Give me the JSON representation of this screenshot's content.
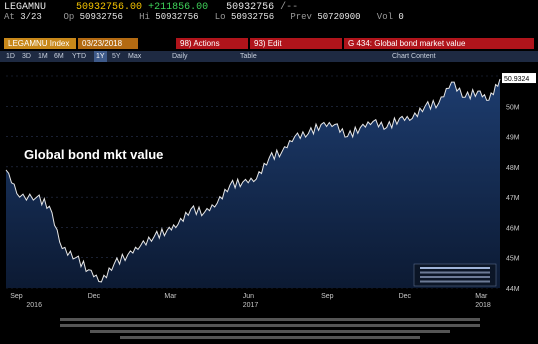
{
  "header": {
    "ticker": "LEGAMNU",
    "last": "50932756.00",
    "change": "+211856.00",
    "last2": "50932756",
    "suffix": "/--",
    "at_label": "At",
    "at_time": "3/23",
    "op_label": "Op",
    "op": "50932756",
    "hi_label": "Hi",
    "hi": "50932756",
    "lo_label": "Lo",
    "lo": "50932756",
    "prev_label": "Prev",
    "prev": "50720900",
    "vol_label": "Vol",
    "vol": "0"
  },
  "toolbar": {
    "index_label": "LEGAMNU Index",
    "date_range": "03/23/2018",
    "actions": "98) Actions",
    "edit": "93) Edit",
    "title": "G 434: Global bond market value"
  },
  "timebar": {
    "tabs": [
      "1D",
      "3D",
      "1M",
      "6M",
      "YTD",
      "1Y",
      "5Y",
      "Max"
    ],
    "selected_tab": "1Y",
    "freq": "Daily",
    "table": "Table",
    "chart_content": "Chart Content"
  },
  "annotation": "Global bond mkt value",
  "legend": {
    "current_value": "50.9324"
  },
  "colors": {
    "area_top": "#1d3c6e",
    "area_bottom": "#0c1a33",
    "line": "#e8e8e8",
    "toolbar_red": "#b0141b",
    "toolbar_orange": "#c8881a",
    "ticker_green": "#3fd35a",
    "header_yellow": "#f5c400"
  },
  "chart_data": {
    "type": "area",
    "ylim": [
      44,
      51
    ],
    "ytick_labels": [
      "44M",
      "45M",
      "46M",
      "47M",
      "48M",
      "49M",
      "50M"
    ],
    "x_labels": [
      "Sep",
      "Dec",
      "Mar",
      "Jun",
      "Sep",
      "Dec",
      "Mar"
    ],
    "year_labels": [
      "2016",
      "2017",
      "2018"
    ],
    "series": [
      {
        "x": [
          "2016-08-20",
          "2016-09-05",
          "2016-09-25",
          "2016-10-10",
          "2016-10-25",
          "2016-11-10",
          "2016-11-25",
          "2016-12-10",
          "2016-12-25",
          "2017-01-10",
          "2017-01-25",
          "2017-02-10",
          "2017-02-25",
          "2017-03-10",
          "2017-03-25",
          "2017-04-10",
          "2017-04-25",
          "2017-05-10",
          "2017-05-25",
          "2017-06-10",
          "2017-06-25",
          "2017-07-10",
          "2017-07-25",
          "2017-08-10",
          "2017-08-25",
          "2017-09-10",
          "2017-09-25",
          "2017-10-10",
          "2017-10-25",
          "2017-11-10",
          "2017-11-25",
          "2017-12-10",
          "2017-12-25",
          "2018-01-10",
          "2018-01-25",
          "2018-02-10",
          "2018-02-25",
          "2018-03-10",
          "2018-03-23"
        ],
        "values": [
          47.9,
          47.0,
          47.0,
          46.7,
          45.3,
          45.0,
          44.6,
          44.2,
          44.8,
          45.1,
          45.4,
          45.7,
          45.9,
          46.1,
          46.6,
          46.5,
          46.8,
          47.4,
          47.5,
          47.6,
          48.3,
          48.5,
          49.0,
          49.1,
          49.4,
          49.4,
          49.0,
          49.3,
          49.5,
          49.3,
          49.6,
          49.6,
          50.0,
          50.1,
          50.8,
          50.3,
          50.5,
          50.2,
          50.9
        ]
      }
    ]
  }
}
